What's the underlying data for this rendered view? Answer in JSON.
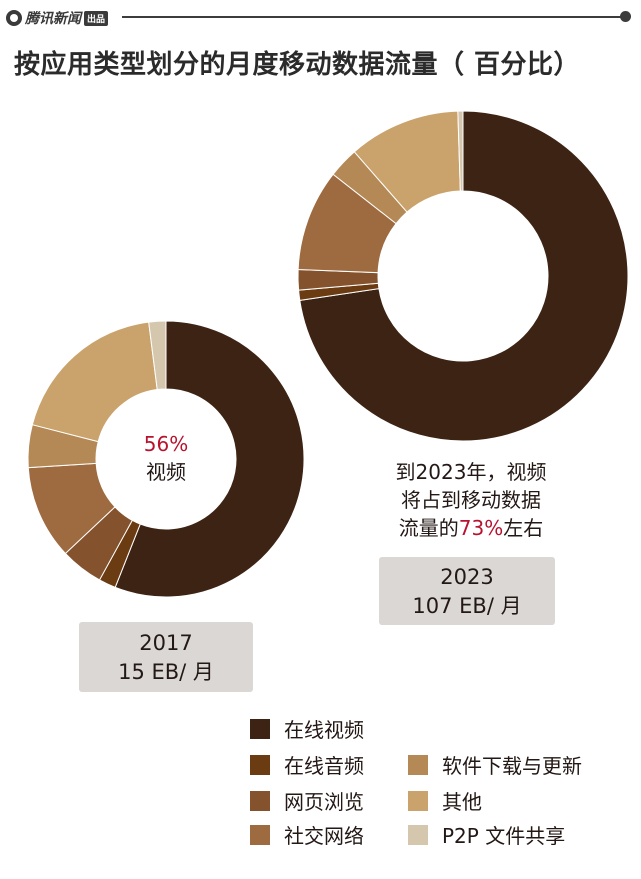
{
  "header": {
    "logo_text": "腾讯新闻",
    "logo_badge": "出品"
  },
  "title": "按应用类型划分的月度移动数据流量（ 百分比）",
  "chart_data": [
    {
      "type": "pie",
      "name": "2017",
      "label": "2017",
      "total": "15 EB/ 月",
      "center_text": [
        "56%",
        "视频"
      ],
      "categories": [
        "在线视频",
        "在线音频",
        "网页浏览",
        "社交网络",
        "软件下载与更新",
        "其他",
        "P2P文件共享"
      ],
      "values": [
        56,
        2,
        5,
        11,
        5,
        19,
        2
      ]
    },
    {
      "type": "pie",
      "name": "2023",
      "label": "2023",
      "total": "107 EB/ 月",
      "annotation": [
        "到2023年，视频",
        "将占到移动数据",
        "流量的",
        "73%",
        "左右"
      ],
      "categories": [
        "在线视频",
        "在线音频",
        "网页浏览",
        "社交网络",
        "软件下载与更新",
        "其他",
        "P2P文件共享"
      ],
      "values": [
        73,
        1,
        2,
        10,
        3,
        11,
        0.5
      ]
    }
  ],
  "legend": [
    {
      "label": "在线视频",
      "color": "#3d2314"
    },
    {
      "label": "在线音频",
      "color": "#6b3b12"
    },
    {
      "label": "网页浏览",
      "color": "#84532e"
    },
    {
      "label": "社交网络",
      "color": "#9e6a40"
    },
    {
      "label": "软件下载与更新",
      "color": "#b58955"
    },
    {
      "label": "其他",
      "color": "#caa26b"
    },
    {
      "label": "P2P 文件共享",
      "color": "#d5c7ad"
    }
  ]
}
